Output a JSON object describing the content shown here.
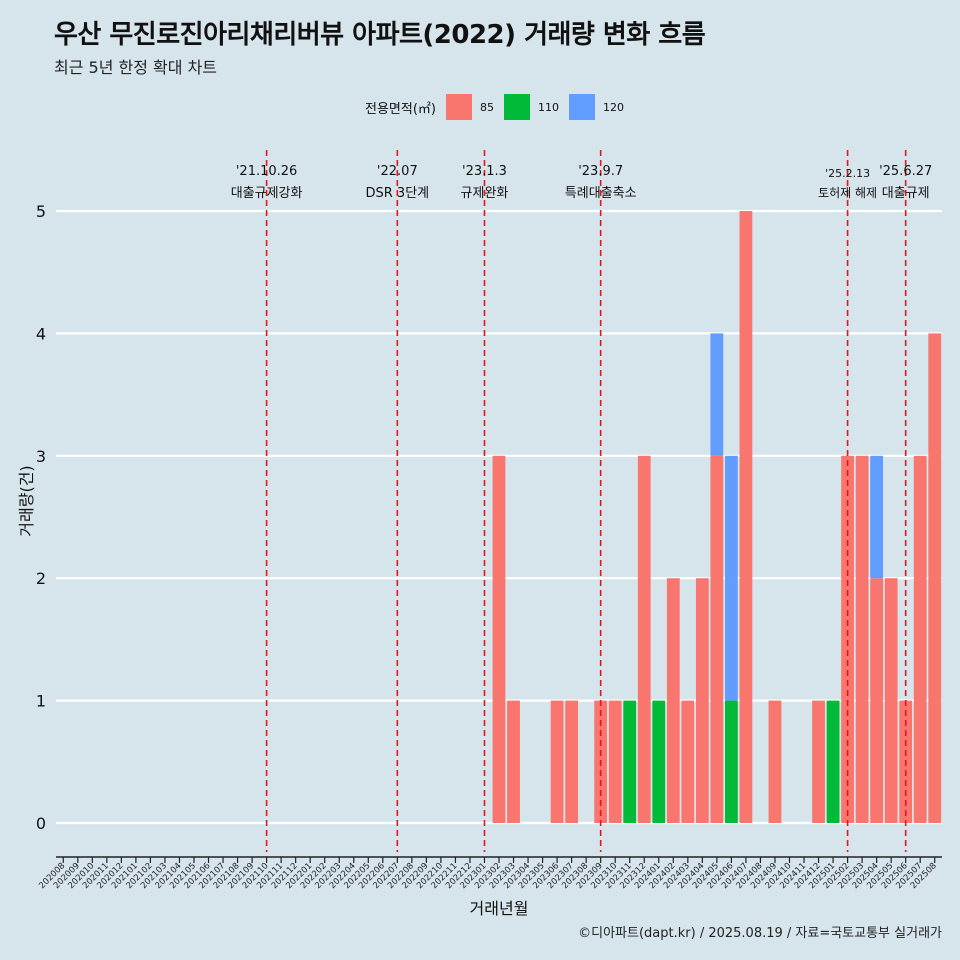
{
  "title": "우산 무진로진아리채리버뷰 아파트(2022) 거래량 변화 흐름",
  "subtitle": "최근 5년 한정 확대 차트",
  "caption": "©디아파트(dapt.kr) / 2025.08.19 / 자료=국토교통부 실거래가",
  "legend": {
    "title": "전용면적(㎡)",
    "items": [
      {
        "label": "85",
        "color": "#f8766d"
      },
      {
        "label": "110",
        "color": "#00ba38"
      },
      {
        "label": "120",
        "color": "#619cff"
      }
    ]
  },
  "chart_data": {
    "type": "bar",
    "stacked": true,
    "xlabel": "거래년월",
    "ylabel": "거래량(건)",
    "ylim": [
      0,
      5
    ],
    "yticks": [
      0,
      1,
      2,
      3,
      4,
      5
    ],
    "grid": "horizontal",
    "categories": [
      "202008",
      "202009",
      "202010",
      "202011",
      "202012",
      "202101",
      "202102",
      "202103",
      "202104",
      "202105",
      "202106",
      "202107",
      "202108",
      "202109",
      "202110",
      "202111",
      "202112",
      "202201",
      "202202",
      "202203",
      "202204",
      "202205",
      "202206",
      "202207",
      "202208",
      "202209",
      "202210",
      "202211",
      "202212",
      "202301",
      "202302",
      "202303",
      "202304",
      "202305",
      "202306",
      "202307",
      "202308",
      "202309",
      "202310",
      "202311",
      "202312",
      "202401",
      "202402",
      "202403",
      "202404",
      "202405",
      "202406",
      "202407",
      "202408",
      "202409",
      "202410",
      "202411",
      "202412",
      "202501",
      "202502",
      "202503",
      "202504",
      "202505",
      "202506",
      "202507",
      "202508"
    ],
    "series": [
      {
        "name": "85",
        "color": "#f8766d",
        "values": [
          0,
          0,
          0,
          0,
          0,
          0,
          0,
          0,
          0,
          0,
          0,
          0,
          0,
          0,
          0,
          0,
          0,
          0,
          0,
          0,
          0,
          0,
          0,
          0,
          0,
          0,
          0,
          0,
          0,
          0,
          3,
          1,
          0,
          0,
          1,
          1,
          0,
          1,
          1,
          0,
          3,
          0,
          2,
          1,
          2,
          3,
          0,
          5,
          0,
          1,
          0,
          0,
          1,
          0,
          3,
          3,
          2,
          2,
          1,
          3,
          4
        ]
      },
      {
        "name": "110",
        "color": "#00ba38",
        "values": [
          0,
          0,
          0,
          0,
          0,
          0,
          0,
          0,
          0,
          0,
          0,
          0,
          0,
          0,
          0,
          0,
          0,
          0,
          0,
          0,
          0,
          0,
          0,
          0,
          0,
          0,
          0,
          0,
          0,
          0,
          0,
          0,
          0,
          0,
          0,
          0,
          0,
          0,
          0,
          1,
          0,
          1,
          0,
          0,
          0,
          0,
          1,
          0,
          0,
          0,
          0,
          0,
          0,
          1,
          0,
          0,
          0,
          0,
          0,
          0,
          0
        ]
      },
      {
        "name": "120",
        "color": "#619cff",
        "values": [
          0,
          0,
          0,
          0,
          0,
          0,
          0,
          0,
          0,
          0,
          0,
          0,
          0,
          0,
          0,
          0,
          0,
          0,
          0,
          0,
          0,
          0,
          0,
          0,
          0,
          0,
          0,
          0,
          0,
          0,
          0,
          0,
          0,
          0,
          0,
          0,
          0,
          0,
          0,
          0,
          0,
          0,
          0,
          0,
          0,
          1,
          2,
          0,
          0,
          0,
          0,
          0,
          0,
          0,
          0,
          0,
          1,
          0,
          0,
          0,
          0
        ]
      }
    ],
    "annotations": [
      {
        "date": "'21.10.26",
        "label": "대출규제강화",
        "x": "202110"
      },
      {
        "date": "'22.07",
        "label": "DSR 3단계",
        "x": "202207"
      },
      {
        "date": "'23.1.3",
        "label": "규제완화",
        "x": "202301"
      },
      {
        "date": "'23.9.7",
        "label": "특례대출축소",
        "x": "202309"
      },
      {
        "date": "'25.2.13",
        "label": "토허제 해제",
        "x": "202502"
      },
      {
        "date": "'25.6.27",
        "label": "대출규제",
        "x": "202506"
      }
    ]
  }
}
